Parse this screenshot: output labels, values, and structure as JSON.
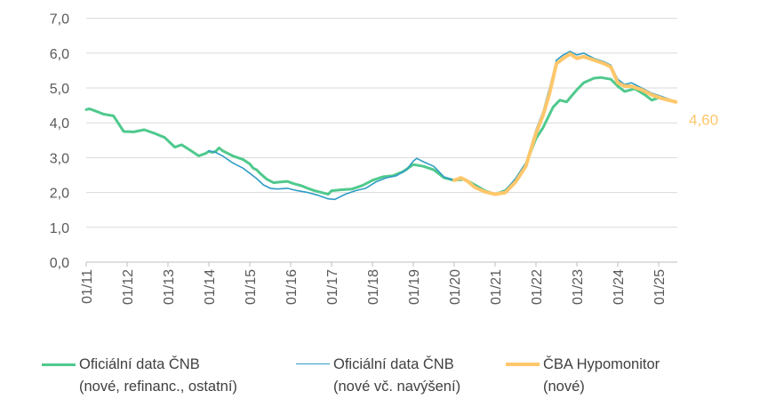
{
  "chart_data": {
    "type": "line",
    "ylim": [
      0,
      7
    ],
    "y_ticks": [
      "0,0",
      "1,0",
      "2,0",
      "3,0",
      "4,0",
      "5,0",
      "6,0",
      "7,0"
    ],
    "x_tick_labels": [
      "01/11",
      "01/12",
      "01/13",
      "01/14",
      "01/15",
      "01/16",
      "01/17",
      "01/18",
      "01/19",
      "01/20",
      "01/21",
      "01/22",
      "01/23",
      "01/24",
      "01/25"
    ],
    "grid": "horizontal",
    "legend_position": "bottom",
    "last_value_label": "4,60",
    "series": [
      {
        "name": "Oficiální data ČNB (nové, refinanc., ostatní)",
        "legend_line1": "Oficiální data ČNB",
        "legend_line2": "(nové, refinanc., ostatní)",
        "color": "#4FC98D",
        "width": 3,
        "points": [
          [
            "2011-01",
            4.38
          ],
          [
            "2011-02",
            4.4
          ],
          [
            "2011-04",
            4.33
          ],
          [
            "2011-06",
            4.25
          ],
          [
            "2011-09",
            4.2
          ],
          [
            "2011-12",
            3.75
          ],
          [
            "2012-03",
            3.74
          ],
          [
            "2012-06",
            3.8
          ],
          [
            "2012-09",
            3.7
          ],
          [
            "2012-12",
            3.58
          ],
          [
            "2013-03",
            3.3
          ],
          [
            "2013-05",
            3.37
          ],
          [
            "2013-08",
            3.18
          ],
          [
            "2013-10",
            3.05
          ],
          [
            "2013-12",
            3.12
          ],
          [
            "2014-01",
            3.18
          ],
          [
            "2014-02",
            3.15
          ],
          [
            "2014-03",
            3.18
          ],
          [
            "2014-04",
            3.28
          ],
          [
            "2014-05",
            3.2
          ],
          [
            "2014-08",
            3.05
          ],
          [
            "2014-11",
            2.95
          ],
          [
            "2015-01",
            2.82
          ],
          [
            "2015-02",
            2.7
          ],
          [
            "2015-03",
            2.65
          ],
          [
            "2015-04",
            2.55
          ],
          [
            "2015-06",
            2.38
          ],
          [
            "2015-08",
            2.28
          ],
          [
            "2015-10",
            2.3
          ],
          [
            "2015-12",
            2.32
          ],
          [
            "2016-02",
            2.25
          ],
          [
            "2016-04",
            2.2
          ],
          [
            "2016-06",
            2.12
          ],
          [
            "2016-08",
            2.05
          ],
          [
            "2016-10",
            2.0
          ],
          [
            "2016-12",
            1.95
          ],
          [
            "2017-01",
            2.05
          ],
          [
            "2017-04",
            2.08
          ],
          [
            "2017-07",
            2.1
          ],
          [
            "2017-10",
            2.2
          ],
          [
            "2018-01",
            2.35
          ],
          [
            "2018-04",
            2.45
          ],
          [
            "2018-07",
            2.48
          ],
          [
            "2018-10",
            2.6
          ],
          [
            "2019-01",
            2.8
          ],
          [
            "2019-04",
            2.75
          ],
          [
            "2019-07",
            2.65
          ],
          [
            "2019-10",
            2.42
          ],
          [
            "2020-01",
            2.35
          ],
          [
            "2020-04",
            2.38
          ],
          [
            "2020-07",
            2.22
          ],
          [
            "2020-10",
            2.05
          ],
          [
            "2021-01",
            1.95
          ],
          [
            "2021-04",
            2.05
          ],
          [
            "2021-07",
            2.35
          ],
          [
            "2021-10",
            2.8
          ],
          [
            "2022-01",
            3.55
          ],
          [
            "2022-03",
            3.85
          ],
          [
            "2022-06",
            4.45
          ],
          [
            "2022-08",
            4.65
          ],
          [
            "2022-10",
            4.6
          ],
          [
            "2022-11",
            4.72
          ],
          [
            "2023-01",
            4.95
          ],
          [
            "2023-03",
            5.15
          ],
          [
            "2023-06",
            5.28
          ],
          [
            "2023-08",
            5.3
          ],
          [
            "2023-11",
            5.25
          ],
          [
            "2024-01",
            5.05
          ],
          [
            "2024-03",
            4.9
          ],
          [
            "2024-06",
            4.98
          ],
          [
            "2024-09",
            4.8
          ],
          [
            "2024-11",
            4.65
          ],
          [
            "2025-01",
            4.72
          ],
          [
            "2025-04",
            4.65
          ],
          [
            "2025-06",
            4.6
          ]
        ]
      },
      {
        "name": "Oficiální data ČNB (nové vč. navýšení)",
        "legend_line1": "Oficiální data ČNB",
        "legend_line2": "(nové vč. navýšení)",
        "color": "#2E9CC4",
        "width": 1.6,
        "points": [
          [
            "2014-01",
            3.2
          ],
          [
            "2014-03",
            3.15
          ],
          [
            "2014-05",
            3.05
          ],
          [
            "2014-08",
            2.85
          ],
          [
            "2014-11",
            2.7
          ],
          [
            "2015-01",
            2.55
          ],
          [
            "2015-03",
            2.4
          ],
          [
            "2015-05",
            2.22
          ],
          [
            "2015-07",
            2.12
          ],
          [
            "2015-09",
            2.1
          ],
          [
            "2015-12",
            2.12
          ],
          [
            "2016-03",
            2.05
          ],
          [
            "2016-06",
            2.0
          ],
          [
            "2016-09",
            1.92
          ],
          [
            "2016-12",
            1.82
          ],
          [
            "2017-02",
            1.8
          ],
          [
            "2017-05",
            1.95
          ],
          [
            "2017-08",
            2.05
          ],
          [
            "2017-11",
            2.12
          ],
          [
            "2018-02",
            2.3
          ],
          [
            "2018-05",
            2.42
          ],
          [
            "2018-08",
            2.48
          ],
          [
            "2018-11",
            2.65
          ],
          [
            "2019-01",
            2.9
          ],
          [
            "2019-02",
            2.98
          ],
          [
            "2019-04",
            2.88
          ],
          [
            "2019-07",
            2.75
          ],
          [
            "2019-10",
            2.45
          ],
          [
            "2020-01",
            2.35
          ],
          [
            "2020-04",
            2.4
          ],
          [
            "2020-07",
            2.2
          ],
          [
            "2020-10",
            2.05
          ],
          [
            "2021-01",
            1.95
          ],
          [
            "2021-04",
            2.05
          ],
          [
            "2021-07",
            2.4
          ],
          [
            "2021-10",
            2.85
          ],
          [
            "2022-01",
            3.8
          ],
          [
            "2022-03",
            4.3
          ],
          [
            "2022-05",
            5.0
          ],
          [
            "2022-07",
            5.8
          ],
          [
            "2022-09",
            5.95
          ],
          [
            "2022-11",
            6.05
          ],
          [
            "2023-01",
            5.95
          ],
          [
            "2023-03",
            6.0
          ],
          [
            "2023-06",
            5.85
          ],
          [
            "2023-09",
            5.75
          ],
          [
            "2023-11",
            5.65
          ],
          [
            "2024-01",
            5.25
          ],
          [
            "2024-03",
            5.1
          ],
          [
            "2024-05",
            5.15
          ],
          [
            "2024-08",
            5.0
          ],
          [
            "2024-11",
            4.85
          ],
          [
            "2025-02",
            4.75
          ],
          [
            "2025-05",
            4.65
          ]
        ]
      },
      {
        "name": "ČBA Hypomonitor (nové)",
        "legend_line1": "ČBA Hypomonitor",
        "legend_line2": "(nové)",
        "color": "#FFC76B",
        "width": 4,
        "points": [
          [
            "2020-01",
            2.35
          ],
          [
            "2020-03",
            2.42
          ],
          [
            "2020-05",
            2.32
          ],
          [
            "2020-07",
            2.15
          ],
          [
            "2020-10",
            2.02
          ],
          [
            "2021-01",
            1.95
          ],
          [
            "2021-04",
            2.0
          ],
          [
            "2021-07",
            2.3
          ],
          [
            "2021-10",
            2.75
          ],
          [
            "2022-01",
            3.7
          ],
          [
            "2022-03",
            4.2
          ],
          [
            "2022-05",
            4.85
          ],
          [
            "2022-07",
            5.7
          ],
          [
            "2022-09",
            5.85
          ],
          [
            "2022-11",
            5.98
          ],
          [
            "2023-01",
            5.85
          ],
          [
            "2023-03",
            5.9
          ],
          [
            "2023-06",
            5.8
          ],
          [
            "2023-09",
            5.7
          ],
          [
            "2023-11",
            5.6
          ],
          [
            "2024-01",
            5.15
          ],
          [
            "2024-03",
            5.05
          ],
          [
            "2024-05",
            5.05
          ],
          [
            "2024-08",
            4.95
          ],
          [
            "2024-11",
            4.8
          ],
          [
            "2025-02",
            4.7
          ],
          [
            "2025-06",
            4.6
          ]
        ]
      }
    ]
  }
}
